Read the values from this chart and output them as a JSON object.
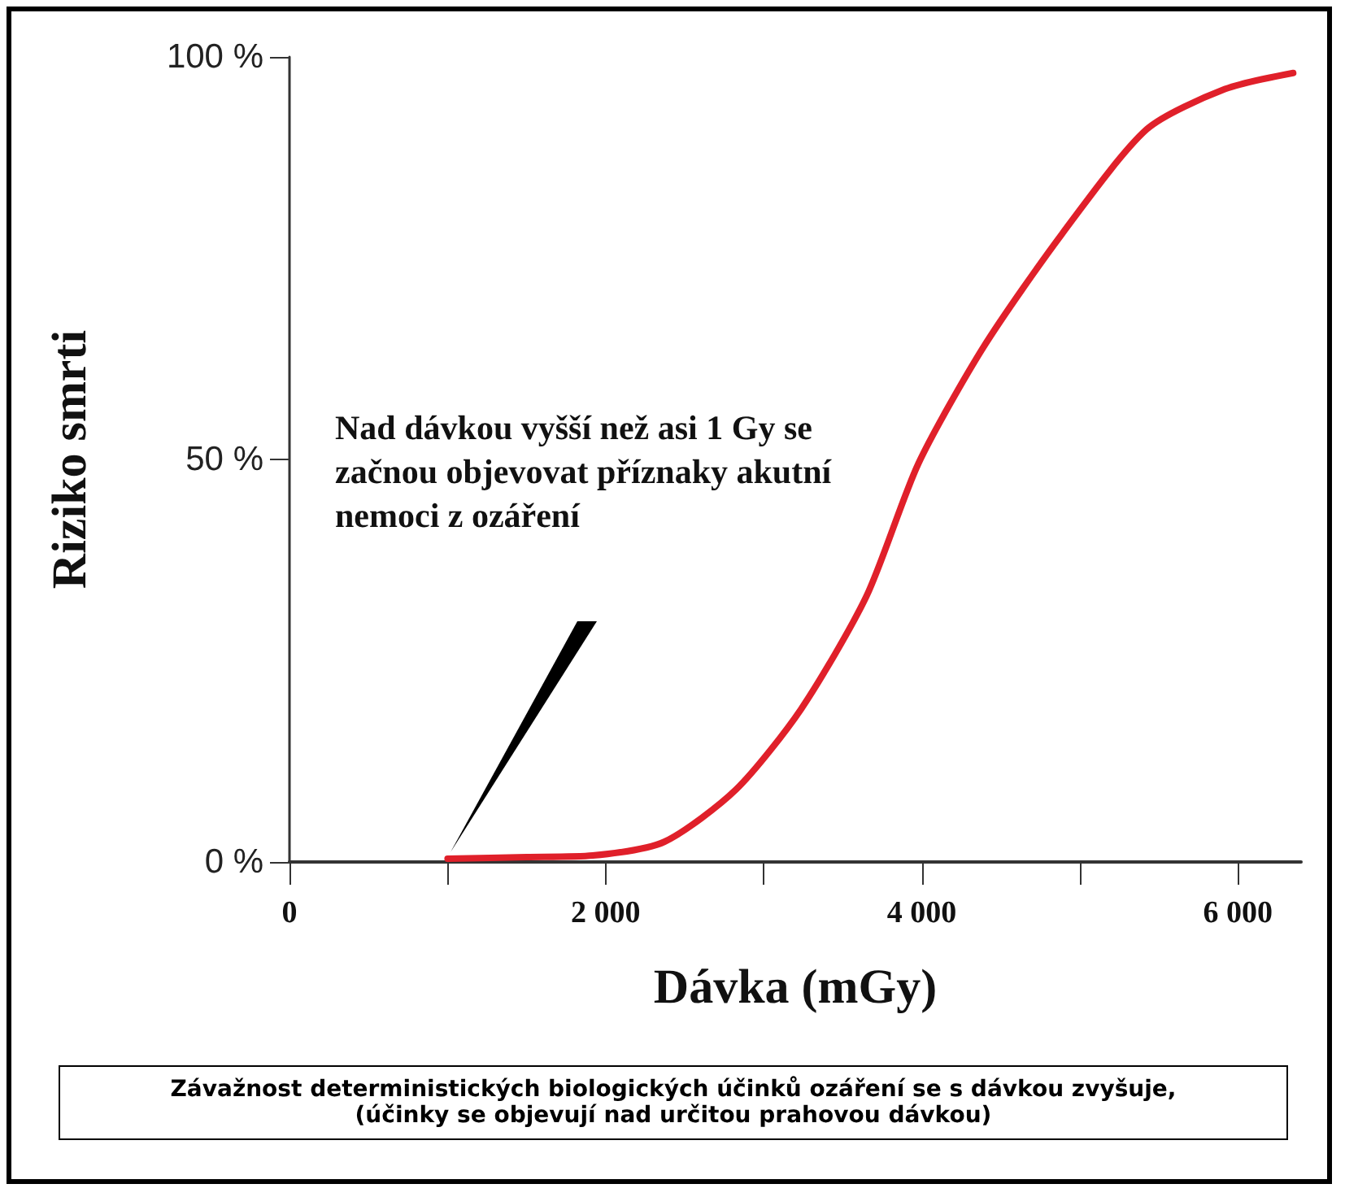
{
  "chart_data": {
    "type": "line",
    "xlabel": "Dávka (mGy)",
    "ylabel": "Riziko smrti",
    "x": [
      1000,
      1500,
      1918,
      2371,
      2825,
      3237,
      3650,
      3979,
      4392,
      4887,
      5423,
      5918,
      6350
    ],
    "series": [
      {
        "color": "#e0202a",
        "values": [
          0.4,
          0.6,
          0.8,
          2.5,
          9,
          19,
          33,
          49.5,
          64,
          78,
          91,
          96,
          98
        ]
      }
    ],
    "xlim": [
      0,
      6400
    ],
    "xticks": [
      {
        "value": 0,
        "label": "0"
      },
      {
        "value": 1000,
        "label": null
      },
      {
        "value": 2000,
        "label": "2 000"
      },
      {
        "value": 3000,
        "label": null
      },
      {
        "value": 4000,
        "label": "4 000"
      },
      {
        "value": 5000,
        "label": null
      },
      {
        "value": 6000,
        "label": "6 000"
      }
    ],
    "ylim": [
      0,
      100
    ],
    "yticks": [
      {
        "value": 0,
        "label": "0 %"
      },
      {
        "value": 50,
        "label": "50 %"
      },
      {
        "value": 100,
        "label": "100 %"
      }
    ],
    "grid": false,
    "marker": "none",
    "line_style": "solid",
    "annotations": [
      "Nad dávkou vyšší než asi 1 Gy se začnou objevovat příznaky akutní nemoci z ozáření",
      "Závažnost deterministických biologických účinků ozáření se s dávkou zvyšuje, (účinky se objevují nad určitou prahovou dávkou)"
    ]
  }
}
